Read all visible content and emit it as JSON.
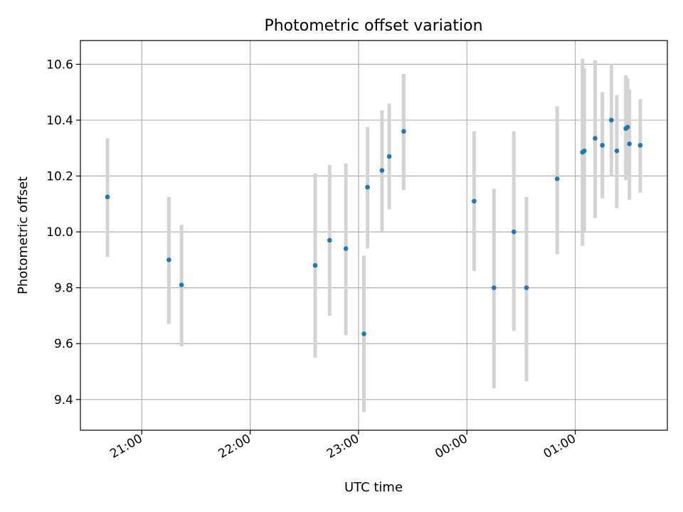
{
  "chart_data": {
    "type": "scatter",
    "title": "Photometric offset variation",
    "xlabel": "UTC time",
    "ylabel": "Photometric offset",
    "grid": true,
    "x_tick_labels": [
      "21:00",
      "22:00",
      "23:00",
      "00:00",
      "01:00"
    ],
    "x_tick_values": [
      "21:00",
      "22:00",
      "23:00",
      "00:00",
      "01:00"
    ],
    "xlim": [
      "20:26",
      "01:51"
    ],
    "ylim": [
      9.29,
      10.685
    ],
    "y_tick_labels": [
      "9.4",
      "9.6",
      "9.8",
      "10.0",
      "10.2",
      "10.4",
      "10.6"
    ],
    "y_tick_values": [
      9.4,
      9.6,
      9.8,
      10.0,
      10.2,
      10.4,
      10.6
    ],
    "marker_color": "#1f77b4",
    "errorbar_color": "#d3d3d3",
    "points": [
      {
        "x": "20:41",
        "y": 10.125,
        "ylo": 9.91,
        "yhi": 10.335
      },
      {
        "x": "21:15",
        "y": 9.9,
        "ylo": 9.67,
        "yhi": 10.125
      },
      {
        "x": "21:22",
        "y": 9.81,
        "ylo": 9.59,
        "yhi": 10.025
      },
      {
        "x": "22:36",
        "y": 9.88,
        "ylo": 9.55,
        "yhi": 10.21
      },
      {
        "x": "22:44",
        "y": 9.97,
        "ylo": 9.7,
        "yhi": 10.24
      },
      {
        "x": "22:53",
        "y": 9.94,
        "ylo": 9.63,
        "yhi": 10.245
      },
      {
        "x": "23:03",
        "y": 9.635,
        "ylo": 9.355,
        "yhi": 9.915
      },
      {
        "x": "23:05",
        "y": 10.16,
        "ylo": 9.94,
        "yhi": 10.375
      },
      {
        "x": "23:13",
        "y": 10.22,
        "ylo": 10.0,
        "yhi": 10.435
      },
      {
        "x": "23:17",
        "y": 10.27,
        "ylo": 10.08,
        "yhi": 10.46
      },
      {
        "x": "23:25",
        "y": 10.36,
        "ylo": 10.15,
        "yhi": 10.565
      },
      {
        "x": "00:04",
        "y": 10.11,
        "ylo": 9.86,
        "yhi": 10.36
      },
      {
        "x": "00:15",
        "y": 9.8,
        "ylo": 9.44,
        "yhi": 10.155
      },
      {
        "x": "00:26",
        "y": 10.0,
        "ylo": 9.645,
        "yhi": 10.36
      },
      {
        "x": "00:33",
        "y": 9.8,
        "ylo": 9.465,
        "yhi": 10.125
      },
      {
        "x": "00:50",
        "y": 10.19,
        "ylo": 9.92,
        "yhi": 10.45
      },
      {
        "x": "01:04",
        "y": 10.285,
        "ylo": 9.95,
        "yhi": 10.62
      },
      {
        "x": "01:05",
        "y": 10.29,
        "ylo": 10.0,
        "yhi": 10.585
      },
      {
        "x": "01:11",
        "y": 10.335,
        "ylo": 10.05,
        "yhi": 10.615
      },
      {
        "x": "01:15",
        "y": 10.31,
        "ylo": 10.12,
        "yhi": 10.5
      },
      {
        "x": "01:20",
        "y": 10.4,
        "ylo": 10.2,
        "yhi": 10.6
      },
      {
        "x": "01:23",
        "y": 10.29,
        "ylo": 10.085,
        "yhi": 10.49
      },
      {
        "x": "01:28",
        "y": 10.37,
        "ylo": 10.185,
        "yhi": 10.56
      },
      {
        "x": "01:29",
        "y": 10.375,
        "ylo": 10.2,
        "yhi": 10.55
      },
      {
        "x": "01:30",
        "y": 10.315,
        "ylo": 10.115,
        "yhi": 10.51
      },
      {
        "x": "01:36",
        "y": 10.31,
        "ylo": 10.14,
        "yhi": 10.475
      }
    ]
  }
}
